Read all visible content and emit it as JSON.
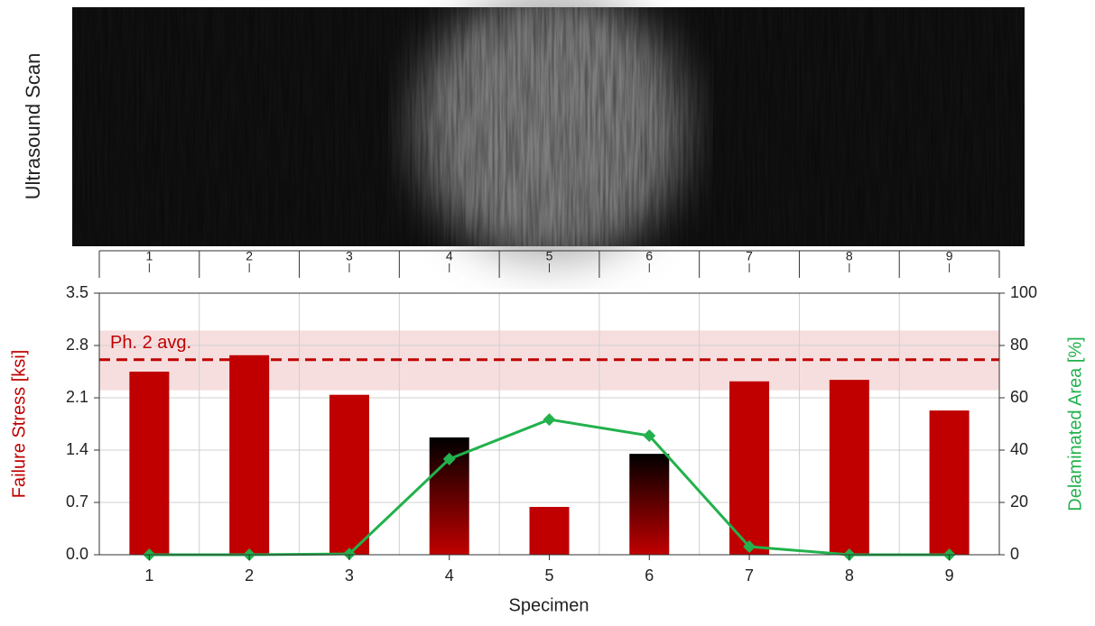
{
  "chart_data": {
    "type": "bar",
    "image_label": "Ultrasound Scan",
    "x_label": "Specimen",
    "y_label": "Failure Stress [ksi]",
    "y2_label": "Delaminated Area [%]",
    "categories": [
      "1",
      "2",
      "3",
      "4",
      "5",
      "6",
      "7",
      "8",
      "9"
    ],
    "series": [
      {
        "type": "bar",
        "color": "#c00000",
        "values": [
          2.45,
          2.67,
          2.14,
          1.57,
          0.64,
          1.35,
          2.32,
          2.34,
          1.93
        ],
        "bar_fill": [
          "solid",
          "solid",
          "solid",
          "gradient",
          "solid",
          "gradient",
          "solid",
          "solid",
          "solid"
        ]
      },
      {
        "type": "line",
        "axis": "y2",
        "color": "#22b14c",
        "marker": "diamond",
        "values": [
          0,
          0,
          0.3,
          36.6,
          51.7,
          45.5,
          3.1,
          0,
          0
        ]
      }
    ],
    "reference": {
      "label": "Ph. 2 avg.",
      "value": 2.61,
      "band": [
        2.2,
        3.0
      ],
      "color": "#c00000"
    },
    "ylim": [
      0,
      3.5
    ],
    "yticks": [
      {
        "value": 0,
        "label": "0.0"
      },
      0.7,
      1.4,
      2.1,
      2.8,
      3.5
    ],
    "y2lim": [
      0,
      100
    ],
    "y2ticks": [
      0,
      20,
      40,
      60,
      80,
      100
    ],
    "grid": true
  }
}
